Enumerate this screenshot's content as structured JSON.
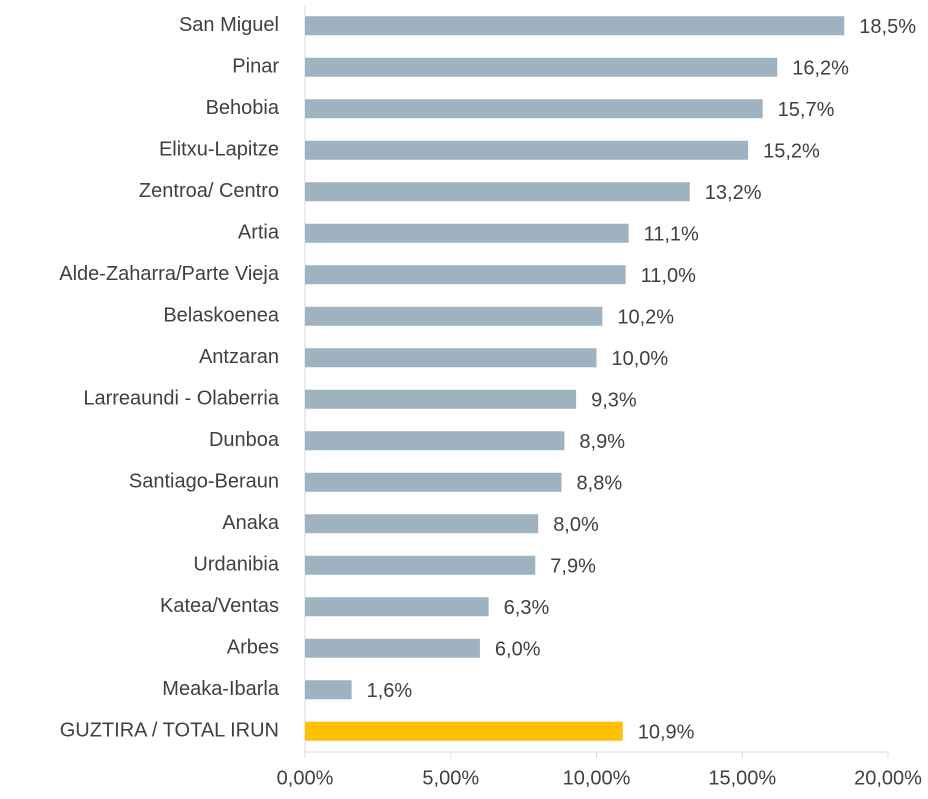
{
  "chart_data": {
    "type": "barh",
    "categories": [
      "San Miguel",
      "Pinar",
      "Behobia",
      "Elitxu-Lapitze",
      "Zentroa/ Centro",
      "Artia",
      "Alde-Zaharra/Parte Vieja",
      "Belaskoenea",
      "Antzaran",
      "Larreaundi - Olaberria",
      "Dunboa",
      "Santiago-Beraun",
      "Anaka",
      "Urdanibia",
      "Katea/Ventas",
      "Arbes",
      "Meaka-Ibarla",
      "GUZTIRA / TOTAL IRUN"
    ],
    "values": [
      18.5,
      16.2,
      15.7,
      15.2,
      13.2,
      11.1,
      11.0,
      10.2,
      10.0,
      9.3,
      8.9,
      8.8,
      8.0,
      7.9,
      6.3,
      6.0,
      1.6,
      10.9
    ],
    "value_labels": [
      "18,5%",
      "16,2%",
      "15,7%",
      "15,2%",
      "13,2%",
      "11,1%",
      "11,0%",
      "10,2%",
      "10,0%",
      "9,3%",
      "8,9%",
      "8,8%",
      "8,0%",
      "7,9%",
      "6,3%",
      "6,0%",
      "1,6%",
      "10,9%"
    ],
    "colors": [
      "#9eb3bf",
      "#9eb3bf",
      "#9eb3bf",
      "#9eb3bf",
      "#9eb3bf",
      "#9eb3bf",
      "#9eb3bf",
      "#9eb3bf",
      "#9eb3bf",
      "#9eb3bf",
      "#9eb3bf",
      "#9eb3bf",
      "#9eb3bf",
      "#9eb3bf",
      "#9eb3bf",
      "#9eb3bf",
      "#9eb3bf",
      "#ffc000"
    ],
    "xlim": [
      0,
      20
    ],
    "xticks": [
      {
        "value": 0,
        "label": "0,00%"
      },
      {
        "value": 5,
        "label": "5,00%"
      },
      {
        "value": 10,
        "label": "10,00%"
      },
      {
        "value": 15,
        "label": "15,00%"
      },
      {
        "value": 20,
        "label": "20,00%"
      }
    ]
  }
}
